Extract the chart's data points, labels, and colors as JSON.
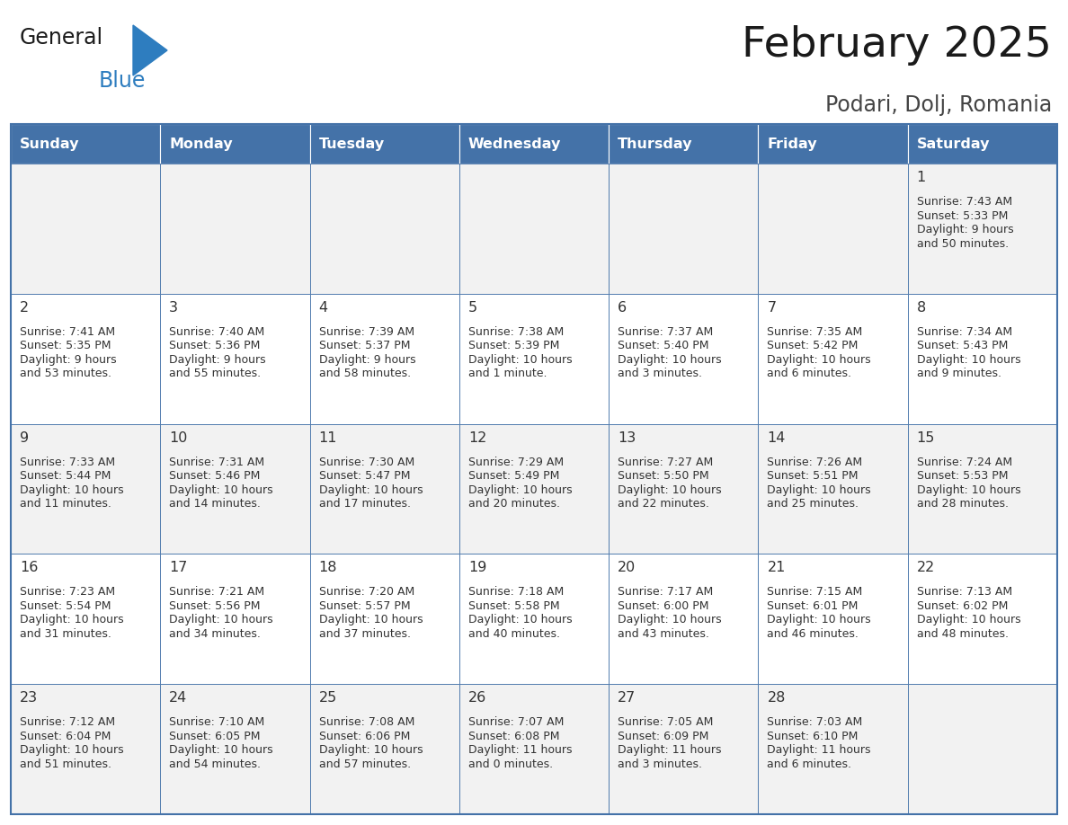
{
  "title": "February 2025",
  "subtitle": "Podari, Dolj, Romania",
  "days_of_week": [
    "Sunday",
    "Monday",
    "Tuesday",
    "Wednesday",
    "Thursday",
    "Friday",
    "Saturday"
  ],
  "header_bg": "#4472A8",
  "header_text": "#FFFFFF",
  "row_bg_odd": "#F2F2F2",
  "row_bg_even": "#FFFFFF",
  "border_color": "#4472A8",
  "text_color": "#333333",
  "calendar_data": {
    "1": {
      "sunrise": "7:43 AM",
      "sunset": "5:33 PM",
      "daylight": "9 hours\nand 50 minutes."
    },
    "2": {
      "sunrise": "7:41 AM",
      "sunset": "5:35 PM",
      "daylight": "9 hours\nand 53 minutes."
    },
    "3": {
      "sunrise": "7:40 AM",
      "sunset": "5:36 PM",
      "daylight": "9 hours\nand 55 minutes."
    },
    "4": {
      "sunrise": "7:39 AM",
      "sunset": "5:37 PM",
      "daylight": "9 hours\nand 58 minutes."
    },
    "5": {
      "sunrise": "7:38 AM",
      "sunset": "5:39 PM",
      "daylight": "10 hours\nand 1 minute."
    },
    "6": {
      "sunrise": "7:37 AM",
      "sunset": "5:40 PM",
      "daylight": "10 hours\nand 3 minutes."
    },
    "7": {
      "sunrise": "7:35 AM",
      "sunset": "5:42 PM",
      "daylight": "10 hours\nand 6 minutes."
    },
    "8": {
      "sunrise": "7:34 AM",
      "sunset": "5:43 PM",
      "daylight": "10 hours\nand 9 minutes."
    },
    "9": {
      "sunrise": "7:33 AM",
      "sunset": "5:44 PM",
      "daylight": "10 hours\nand 11 minutes."
    },
    "10": {
      "sunrise": "7:31 AM",
      "sunset": "5:46 PM",
      "daylight": "10 hours\nand 14 minutes."
    },
    "11": {
      "sunrise": "7:30 AM",
      "sunset": "5:47 PM",
      "daylight": "10 hours\nand 17 minutes."
    },
    "12": {
      "sunrise": "7:29 AM",
      "sunset": "5:49 PM",
      "daylight": "10 hours\nand 20 minutes."
    },
    "13": {
      "sunrise": "7:27 AM",
      "sunset": "5:50 PM",
      "daylight": "10 hours\nand 22 minutes."
    },
    "14": {
      "sunrise": "7:26 AM",
      "sunset": "5:51 PM",
      "daylight": "10 hours\nand 25 minutes."
    },
    "15": {
      "sunrise": "7:24 AM",
      "sunset": "5:53 PM",
      "daylight": "10 hours\nand 28 minutes."
    },
    "16": {
      "sunrise": "7:23 AM",
      "sunset": "5:54 PM",
      "daylight": "10 hours\nand 31 minutes."
    },
    "17": {
      "sunrise": "7:21 AM",
      "sunset": "5:56 PM",
      "daylight": "10 hours\nand 34 minutes."
    },
    "18": {
      "sunrise": "7:20 AM",
      "sunset": "5:57 PM",
      "daylight": "10 hours\nand 37 minutes."
    },
    "19": {
      "sunrise": "7:18 AM",
      "sunset": "5:58 PM",
      "daylight": "10 hours\nand 40 minutes."
    },
    "20": {
      "sunrise": "7:17 AM",
      "sunset": "6:00 PM",
      "daylight": "10 hours\nand 43 minutes."
    },
    "21": {
      "sunrise": "7:15 AM",
      "sunset": "6:01 PM",
      "daylight": "10 hours\nand 46 minutes."
    },
    "22": {
      "sunrise": "7:13 AM",
      "sunset": "6:02 PM",
      "daylight": "10 hours\nand 48 minutes."
    },
    "23": {
      "sunrise": "7:12 AM",
      "sunset": "6:04 PM",
      "daylight": "10 hours\nand 51 minutes."
    },
    "24": {
      "sunrise": "7:10 AM",
      "sunset": "6:05 PM",
      "daylight": "10 hours\nand 54 minutes."
    },
    "25": {
      "sunrise": "7:08 AM",
      "sunset": "6:06 PM",
      "daylight": "10 hours\nand 57 minutes."
    },
    "26": {
      "sunrise": "7:07 AM",
      "sunset": "6:08 PM",
      "daylight": "11 hours\nand 0 minutes."
    },
    "27": {
      "sunrise": "7:05 AM",
      "sunset": "6:09 PM",
      "daylight": "11 hours\nand 3 minutes."
    },
    "28": {
      "sunrise": "7:03 AM",
      "sunset": "6:10 PM",
      "daylight": "11 hours\nand 6 minutes."
    }
  },
  "week_layout": [
    [
      null,
      null,
      null,
      null,
      null,
      null,
      1
    ],
    [
      2,
      3,
      4,
      5,
      6,
      7,
      8
    ],
    [
      9,
      10,
      11,
      12,
      13,
      14,
      15
    ],
    [
      16,
      17,
      18,
      19,
      20,
      21,
      22
    ],
    [
      23,
      24,
      25,
      26,
      27,
      28,
      null
    ]
  ]
}
